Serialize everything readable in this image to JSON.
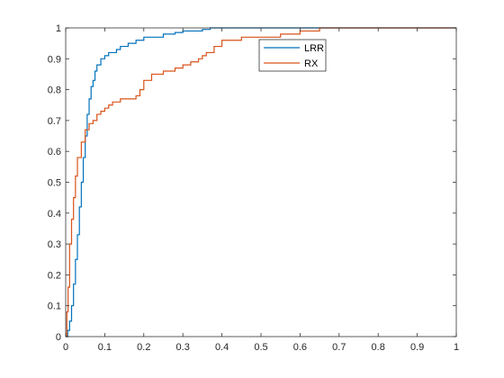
{
  "chart_data": {
    "type": "line",
    "title": "",
    "xlabel": "",
    "ylabel": "",
    "xlim": [
      0,
      1
    ],
    "ylim": [
      0,
      1
    ],
    "xticks": [
      "0",
      "0.1",
      "0.2",
      "0.3",
      "0.4",
      "0.5",
      "0.6",
      "0.7",
      "0.8",
      "0.9",
      "1"
    ],
    "yticks": [
      "0",
      "0.1",
      "0.2",
      "0.3",
      "0.4",
      "0.5",
      "0.6",
      "0.7",
      "0.8",
      "0.9",
      "1"
    ],
    "grid": false,
    "box": true,
    "legend_position": "top-right",
    "series": [
      {
        "name": "LRR",
        "color": "#0072BD",
        "step": true,
        "x": [
          0,
          0.005,
          0.01,
          0.015,
          0.02,
          0.025,
          0.03,
          0.035,
          0.04,
          0.045,
          0.05,
          0.055,
          0.06,
          0.065,
          0.07,
          0.075,
          0.08,
          0.09,
          0.1,
          0.11,
          0.13,
          0.14,
          0.16,
          0.18,
          0.2,
          0.22,
          0.25,
          0.28,
          0.3,
          0.35,
          0.37,
          0.4,
          0.45,
          0.5,
          0.55,
          0.6,
          0.7,
          0.8,
          0.9,
          1.0
        ],
        "y": [
          0,
          0.02,
          0.05,
          0.1,
          0.17,
          0.25,
          0.33,
          0.42,
          0.5,
          0.58,
          0.65,
          0.72,
          0.77,
          0.81,
          0.83,
          0.86,
          0.88,
          0.9,
          0.91,
          0.92,
          0.93,
          0.94,
          0.95,
          0.96,
          0.97,
          0.97,
          0.98,
          0.985,
          0.99,
          0.995,
          1.0,
          1.0,
          1.0,
          1.0,
          1.0,
          1.0,
          1.0,
          1.0,
          1.0,
          1.0
        ]
      },
      {
        "name": "RX",
        "color": "#D95319",
        "step": true,
        "x": [
          0,
          0.003,
          0.006,
          0.01,
          0.015,
          0.02,
          0.025,
          0.03,
          0.04,
          0.05,
          0.06,
          0.07,
          0.08,
          0.09,
          0.1,
          0.11,
          0.12,
          0.14,
          0.16,
          0.18,
          0.19,
          0.2,
          0.22,
          0.25,
          0.28,
          0.3,
          0.32,
          0.34,
          0.35,
          0.36,
          0.38,
          0.4,
          0.45,
          0.5,
          0.55,
          0.6,
          0.65,
          0.7,
          0.8,
          0.9,
          1.0
        ],
        "y": [
          0,
          0.08,
          0.16,
          0.3,
          0.38,
          0.45,
          0.52,
          0.58,
          0.63,
          0.67,
          0.69,
          0.7,
          0.72,
          0.73,
          0.74,
          0.75,
          0.76,
          0.77,
          0.77,
          0.78,
          0.8,
          0.83,
          0.85,
          0.86,
          0.87,
          0.88,
          0.89,
          0.9,
          0.91,
          0.92,
          0.94,
          0.96,
          0.97,
          0.97,
          0.98,
          0.99,
          1.0,
          1.0,
          1.0,
          1.0,
          1.0
        ]
      }
    ]
  }
}
